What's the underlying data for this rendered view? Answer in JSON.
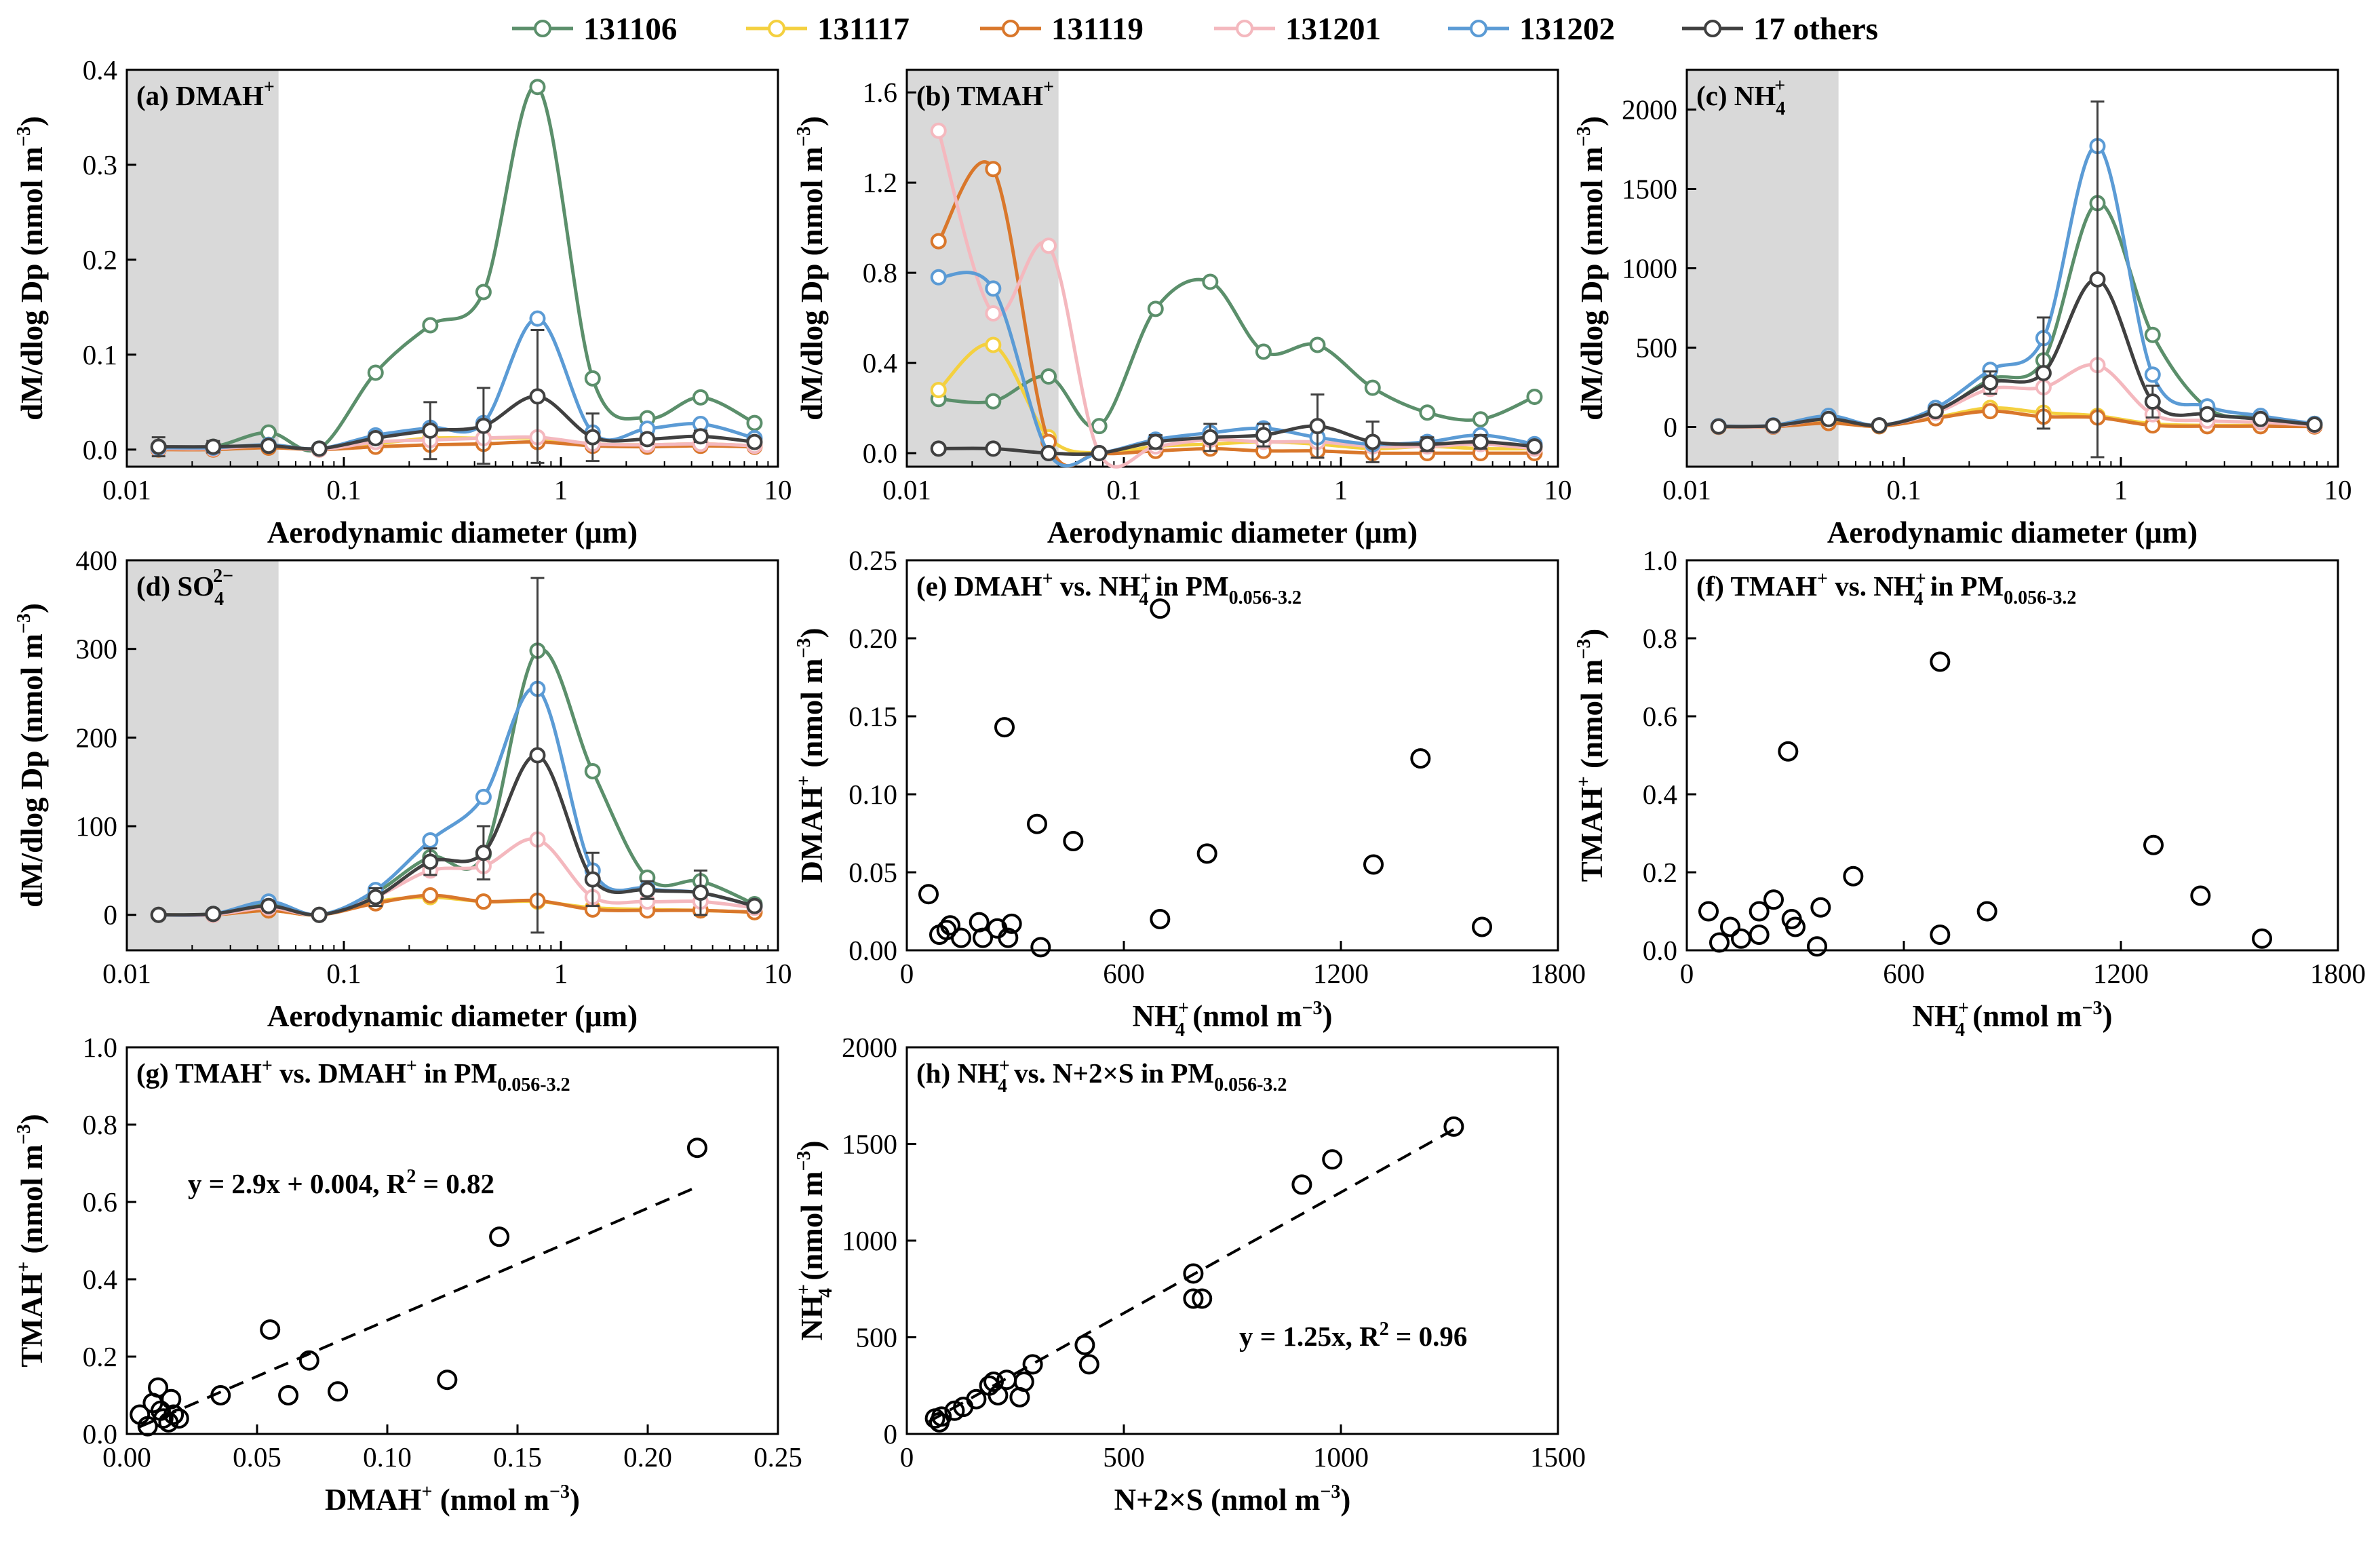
{
  "legend": [
    {
      "label": "131106",
      "color": "#5B8F6B",
      "fill": "#ffffff"
    },
    {
      "label": "131117",
      "color": "#F4D03F",
      "fill": "#ffffff"
    },
    {
      "label": "131119",
      "color": "#D9772B",
      "fill": "#ffffff"
    },
    {
      "label": "131201",
      "color": "#F4B8BE",
      "fill": "#ffffff"
    },
    {
      "label": "131202",
      "color": "#5B9BD5",
      "fill": "#ffffff"
    },
    {
      "label": "17 others",
      "color": "#404040",
      "fill": "#ffffff"
    }
  ],
  "shading_range_um": [
    0.01,
    0.05
  ],
  "x_axis_label": "Aerodynamic diameter (μm)",
  "y_axis_label_size": "dM/dlog Dp (nmol m⁻³)",
  "chart_data": [
    {
      "id": "a",
      "type": "line",
      "title": "(a) DMAH",
      "title_sup": "+",
      "xscale": "log",
      "xlim": [
        0.01,
        10
      ],
      "ylim": [
        -0.018,
        0.4
      ],
      "xticks": [
        0.01,
        0.1,
        1,
        10
      ],
      "xtick_labels": [
        "0.01",
        "0.1",
        "1",
        "10"
      ],
      "yticks": [
        0,
        0.1,
        0.2,
        0.3,
        0.4
      ],
      "ytick_labels": [
        "0.0",
        "0.1",
        "0.2",
        "0.3",
        "0.4"
      ],
      "x": [
        0.014,
        0.025,
        0.045,
        0.077,
        0.14,
        0.25,
        0.44,
        0.78,
        1.4,
        2.5,
        4.4,
        7.8
      ],
      "series": [
        {
          "name": "131106",
          "values": [
            0.002,
            0.003,
            0.018,
            0.001,
            0.081,
            0.131,
            0.166,
            0.382,
            0.075,
            0.033,
            0.055,
            0.028
          ]
        },
        {
          "name": "131117",
          "values": [
            0.001,
            0.001,
            0.005,
            0.0,
            0.006,
            0.012,
            0.012,
            0.012,
            0.006,
            0.005,
            0.006,
            0.004
          ]
        },
        {
          "name": "131119",
          "values": [
            0.0,
            0.0,
            0.002,
            0.0,
            0.003,
            0.005,
            0.006,
            0.008,
            0.004,
            0.003,
            0.004,
            0.003
          ]
        },
        {
          "name": "131201",
          "values": [
            0.001,
            0.001,
            0.004,
            0.0,
            0.008,
            0.01,
            0.012,
            0.013,
            0.006,
            0.005,
            0.006,
            0.004
          ]
        },
        {
          "name": "131202",
          "values": [
            0.002,
            0.002,
            0.005,
            0.001,
            0.015,
            0.023,
            0.028,
            0.138,
            0.018,
            0.022,
            0.027,
            0.012
          ]
        },
        {
          "name": "17 others",
          "values": [
            0.003,
            0.003,
            0.004,
            0.001,
            0.012,
            0.02,
            0.025,
            0.056,
            0.013,
            0.011,
            0.014,
            0.008
          ]
        }
      ],
      "error_series": "17 others",
      "errors": [
        0.01,
        0.006,
        0.004,
        0.002,
        0.005,
        0.03,
        0.04,
        0.07,
        0.025,
        0.005,
        0.006,
        0.003
      ]
    },
    {
      "id": "b",
      "type": "line",
      "title": "(b) TMAH",
      "title_sup": "+",
      "xscale": "log",
      "xlim": [
        0.01,
        10
      ],
      "ylim": [
        -0.06,
        1.7
      ],
      "xticks": [
        0.01,
        0.1,
        1,
        10
      ],
      "xtick_labels": [
        "0.01",
        "0.1",
        "1",
        "10"
      ],
      "yticks": [
        0,
        0.4,
        0.8,
        1.2,
        1.6
      ],
      "ytick_labels": [
        "0.0",
        "0.4",
        "0.8",
        "1.2",
        "1.6"
      ],
      "x": [
        0.014,
        0.025,
        0.045,
        0.077,
        0.14,
        0.25,
        0.44,
        0.78,
        1.4,
        2.5,
        4.4,
        7.8
      ],
      "series": [
        {
          "name": "131106",
          "values": [
            0.24,
            0.23,
            0.34,
            0.12,
            0.64,
            0.76,
            0.45,
            0.48,
            0.29,
            0.18,
            0.15,
            0.25
          ]
        },
        {
          "name": "131117",
          "values": [
            0.28,
            0.48,
            0.07,
            0.0,
            0.03,
            0.04,
            0.05,
            0.04,
            0.02,
            0.03,
            0.02,
            0.02
          ]
        },
        {
          "name": "131119",
          "values": [
            0.94,
            1.26,
            0.05,
            0.0,
            0.01,
            0.02,
            0.01,
            0.01,
            0.0,
            0.0,
            0.0,
            0.0
          ]
        },
        {
          "name": "131201",
          "values": [
            1.43,
            0.62,
            0.92,
            0.0,
            0.03,
            0.06,
            0.05,
            0.05,
            0.03,
            0.03,
            0.04,
            0.02
          ]
        },
        {
          "name": "131202",
          "values": [
            0.78,
            0.73,
            0.0,
            0.0,
            0.06,
            0.09,
            0.11,
            0.07,
            0.04,
            0.05,
            0.08,
            0.04
          ]
        },
        {
          "name": "17 others",
          "values": [
            0.02,
            0.02,
            0.0,
            0.0,
            0.05,
            0.07,
            0.08,
            0.12,
            0.05,
            0.04,
            0.05,
            0.03
          ]
        }
      ],
      "error_series": "17 others",
      "errors": [
        0.01,
        0.01,
        0.0,
        0.0,
        0.03,
        0.06,
        0.05,
        0.14,
        0.09,
        0.03,
        0.03,
        0.01
      ]
    },
    {
      "id": "c",
      "type": "line",
      "title": "(c) NH",
      "title_sub": "4",
      "title_sup": "+",
      "xscale": "log",
      "xlim": [
        0.01,
        10
      ],
      "ylim": [
        -250,
        2250
      ],
      "xticks": [
        0.01,
        0.1,
        1,
        10
      ],
      "xtick_labels": [
        "0.01",
        "0.1",
        "1",
        "10"
      ],
      "yticks": [
        0,
        500,
        1000,
        1500,
        2000
      ],
      "ytick_labels": [
        "0",
        "500",
        "1000",
        "1500",
        "2000"
      ],
      "x": [
        0.014,
        0.025,
        0.045,
        0.077,
        0.14,
        0.25,
        0.44,
        0.78,
        1.4,
        2.5,
        4.4,
        7.8
      ],
      "series": [
        {
          "name": "131106",
          "values": [
            2,
            5,
            40,
            10,
            90,
            300,
            420,
            1410,
            580,
            120,
            60,
            20
          ]
        },
        {
          "name": "131117",
          "values": [
            1,
            3,
            30,
            5,
            60,
            120,
            90,
            70,
            20,
            10,
            10,
            5
          ]
        },
        {
          "name": "131119",
          "values": [
            1,
            2,
            25,
            5,
            55,
            100,
            65,
            60,
            10,
            5,
            5,
            3
          ]
        },
        {
          "name": "131201",
          "values": [
            2,
            5,
            50,
            10,
            90,
            240,
            250,
            390,
            80,
            40,
            30,
            10
          ]
        },
        {
          "name": "131202",
          "values": [
            5,
            10,
            70,
            10,
            120,
            360,
            560,
            1770,
            330,
            130,
            70,
            20
          ]
        },
        {
          "name": "17 others",
          "values": [
            3,
            8,
            50,
            10,
            100,
            280,
            340,
            930,
            160,
            80,
            50,
            15
          ]
        }
      ],
      "error_series": "17 others",
      "errors": [
        2,
        5,
        20,
        5,
        30,
        70,
        350,
        1120,
        100,
        30,
        20,
        10
      ]
    },
    {
      "id": "d",
      "type": "line",
      "title": "(d) SO",
      "title_sub": "4",
      "title_sup": "2−",
      "xscale": "log",
      "xlim": [
        0.01,
        10
      ],
      "ylim": [
        -40,
        400
      ],
      "xticks": [
        0.01,
        0.1,
        1,
        10
      ],
      "xtick_labels": [
        "0.01",
        "0.1",
        "1",
        "10"
      ],
      "yticks": [
        0,
        100,
        200,
        300,
        400
      ],
      "ytick_labels": [
        "0",
        "100",
        "200",
        "300",
        "400"
      ],
      "x": [
        0.014,
        0.025,
        0.045,
        0.077,
        0.14,
        0.25,
        0.44,
        0.78,
        1.4,
        2.5,
        4.4,
        7.8
      ],
      "series": [
        {
          "name": "131106",
          "values": [
            0,
            1,
            12,
            0,
            25,
            65,
            68,
            298,
            162,
            42,
            38,
            12
          ]
        },
        {
          "name": "131117",
          "values": [
            0,
            0,
            5,
            0,
            15,
            20,
            15,
            15,
            8,
            6,
            5,
            3
          ]
        },
        {
          "name": "131119",
          "values": [
            0,
            0,
            5,
            0,
            13,
            22,
            15,
            16,
            6,
            5,
            5,
            3
          ]
        },
        {
          "name": "131201",
          "values": [
            0,
            0,
            8,
            0,
            20,
            50,
            55,
            85,
            20,
            15,
            15,
            8
          ]
        },
        {
          "name": "131202",
          "values": [
            0,
            1,
            15,
            0,
            28,
            84,
            133,
            255,
            50,
            30,
            25,
            10
          ]
        },
        {
          "name": "17 others",
          "values": [
            0,
            1,
            10,
            0,
            20,
            60,
            70,
            180,
            40,
            28,
            25,
            10
          ]
        }
      ],
      "error_series": "17 others",
      "errors": [
        0,
        1,
        5,
        0,
        10,
        15,
        30,
        200,
        30,
        10,
        25,
        5
      ]
    },
    {
      "id": "e",
      "type": "scatter",
      "title": "(e) DMAH⁺ vs. NH⁺₄ in PM",
      "title_sub": "0.056-3.2",
      "xlim": [
        0,
        1800
      ],
      "ylim": [
        0,
        0.25
      ],
      "xticks": [
        0,
        600,
        1200,
        1800
      ],
      "xtick_labels": [
        "0",
        "600",
        "1200",
        "1800"
      ],
      "yticks": [
        0,
        0.05,
        0.1,
        0.15,
        0.2,
        0.25
      ],
      "ytick_labels": [
        "0.00",
        "0.05",
        "0.10",
        "0.15",
        "0.20",
        "0.25"
      ],
      "xlabel": "NH⁺₄ (nmol m⁻³)",
      "ylabel": "DMAH⁺ (nmol m⁻³)",
      "points": [
        [
          60,
          0.036
        ],
        [
          90,
          0.01
        ],
        [
          110,
          0.013
        ],
        [
          120,
          0.016
        ],
        [
          150,
          0.008
        ],
        [
          200,
          0.018
        ],
        [
          210,
          0.008
        ],
        [
          250,
          0.014
        ],
        [
          280,
          0.008
        ],
        [
          290,
          0.017
        ],
        [
          270,
          0.143
        ],
        [
          360,
          0.081
        ],
        [
          370,
          0.002
        ],
        [
          460,
          0.07
        ],
        [
          700,
          0.219
        ],
        [
          700,
          0.02
        ],
        [
          830,
          0.062
        ],
        [
          1290,
          0.055
        ],
        [
          1420,
          0.123
        ],
        [
          1590,
          0.015
        ]
      ]
    },
    {
      "id": "f",
      "type": "scatter",
      "title": "(f) TMAH⁺ vs. NH⁺₄ in PM",
      "title_sub": "0.056-3.2",
      "xlim": [
        0,
        1800
      ],
      "ylim": [
        0,
        1.0
      ],
      "xticks": [
        0,
        600,
        1200,
        1800
      ],
      "xtick_labels": [
        "0",
        "600",
        "1200",
        "1800"
      ],
      "yticks": [
        0,
        0.2,
        0.4,
        0.6,
        0.8,
        1.0
      ],
      "ytick_labels": [
        "0.0",
        "0.2",
        "0.4",
        "0.6",
        "0.8",
        "1.0"
      ],
      "xlabel": "NH⁺₄ (nmol m⁻³)",
      "ylabel": "TMAH⁺ (nmol m⁻³)",
      "points": [
        [
          60,
          0.1
        ],
        [
          90,
          0.02
        ],
        [
          120,
          0.06
        ],
        [
          150,
          0.03
        ],
        [
          200,
          0.04
        ],
        [
          200,
          0.1
        ],
        [
          240,
          0.13
        ],
        [
          280,
          0.51
        ],
        [
          290,
          0.08
        ],
        [
          300,
          0.06
        ],
        [
          360,
          0.01
        ],
        [
          370,
          0.11
        ],
        [
          460,
          0.19
        ],
        [
          700,
          0.74
        ],
        [
          700,
          0.04
        ],
        [
          830,
          0.1
        ],
        [
          1290,
          0.27
        ],
        [
          1420,
          0.14
        ],
        [
          1590,
          0.03
        ]
      ]
    },
    {
      "id": "g",
      "type": "scatter",
      "title": "(g) TMAH⁺ vs. DMAH⁺ in PM",
      "title_sub": "0.056-3.2",
      "xlim": [
        0,
        0.25
      ],
      "ylim": [
        0,
        1.0
      ],
      "xticks": [
        0,
        0.05,
        0.1,
        0.15,
        0.2,
        0.25
      ],
      "xtick_labels": [
        "0.00",
        "0.05",
        "0.10",
        "0.15",
        "0.20",
        "0.25"
      ],
      "yticks": [
        0,
        0.2,
        0.4,
        0.6,
        0.8,
        1.0
      ],
      "ytick_labels": [
        "0.0",
        "0.2",
        "0.4",
        "0.6",
        "0.8",
        "1.0"
      ],
      "xlabel": "DMAH⁺ (nmol m⁻³)",
      "ylabel": "TMAH⁺ (nmol m⁻³)",
      "fit": {
        "slope": 2.9,
        "intercept": 0.004,
        "x_range": [
          0.005,
          0.22
        ],
        "label": "y = 2.9x + 0.004,  R² = 0.82"
      },
      "points": [
        [
          0.005,
          0.05
        ],
        [
          0.008,
          0.02
        ],
        [
          0.01,
          0.08
        ],
        [
          0.012,
          0.12
        ],
        [
          0.013,
          0.06
        ],
        [
          0.014,
          0.04
        ],
        [
          0.016,
          0.03
        ],
        [
          0.017,
          0.09
        ],
        [
          0.018,
          0.05
        ],
        [
          0.02,
          0.04
        ],
        [
          0.036,
          0.1
        ],
        [
          0.055,
          0.27
        ],
        [
          0.062,
          0.1
        ],
        [
          0.07,
          0.19
        ],
        [
          0.081,
          0.11
        ],
        [
          0.123,
          0.14
        ],
        [
          0.143,
          0.51
        ],
        [
          0.219,
          0.74
        ]
      ]
    },
    {
      "id": "h",
      "type": "scatter",
      "title": "(h) NH⁺₄ vs. N+2×S in PM",
      "title_sub": "0.056-3.2",
      "xlim": [
        0,
        1500
      ],
      "ylim": [
        0,
        2000
      ],
      "xticks": [
        0,
        500,
        1000,
        1500
      ],
      "xtick_labels": [
        "0",
        "500",
        "1000",
        "1500"
      ],
      "yticks": [
        0,
        500,
        1000,
        1500,
        2000
      ],
      "ytick_labels": [
        "0",
        "500",
        "1000",
        "1500",
        "2000"
      ],
      "xlabel": "N+2×S (nmol m⁻³)",
      "ylabel": "NH⁺₄ (nmol m⁻³)",
      "fit": {
        "slope": 1.25,
        "intercept": 0,
        "x_range": [
          50,
          1260
        ],
        "label": "y = 1.25x, R² = 0.96"
      },
      "points": [
        [
          65,
          80
        ],
        [
          75,
          60
        ],
        [
          80,
          90
        ],
        [
          110,
          120
        ],
        [
          130,
          140
        ],
        [
          160,
          180
        ],
        [
          190,
          250
        ],
        [
          200,
          270
        ],
        [
          210,
          200
        ],
        [
          230,
          280
        ],
        [
          260,
          190
        ],
        [
          270,
          270
        ],
        [
          290,
          360
        ],
        [
          410,
          460
        ],
        [
          420,
          360
        ],
        [
          660,
          830
        ],
        [
          660,
          700
        ],
        [
          680,
          700
        ],
        [
          910,
          1290
        ],
        [
          980,
          1420
        ],
        [
          1260,
          1590
        ]
      ]
    }
  ]
}
